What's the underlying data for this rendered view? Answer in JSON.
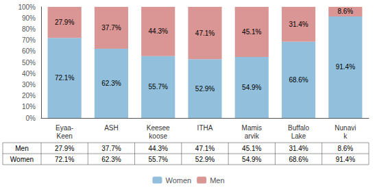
{
  "chart_data": {
    "type": "bar",
    "stacked": true,
    "categories": [
      "Eyaa-\nKeen",
      "ASH",
      "Keesee\nkoose",
      "ITHA",
      "Mamis\narvik",
      "Buffalo\nLake",
      "Nunavi\nk"
    ],
    "series": [
      {
        "name": "Women",
        "color": "#92C0DC",
        "values": [
          72.1,
          62.3,
          55.7,
          52.9,
          54.9,
          68.6,
          91.4
        ],
        "value_labels": [
          "72.1%",
          "62.3%",
          "55.7%",
          "52.9%",
          "54.9%",
          "68.6%",
          "91.4%"
        ]
      },
      {
        "name": "Men",
        "color": "#DA9694",
        "values": [
          27.9,
          37.7,
          44.3,
          47.1,
          45.1,
          31.4,
          8.6
        ],
        "value_labels": [
          "27.9%",
          "37.7%",
          "44.3%",
          "47.1%",
          "45.1%",
          "31.4%",
          "8.6%"
        ]
      }
    ],
    "ylim": [
      0,
      100
    ],
    "yticks": [
      {
        "value": 0,
        "label": "0%"
      },
      {
        "value": 10,
        "label": "10%"
      },
      {
        "value": 20,
        "label": "20%"
      },
      {
        "value": 30,
        "label": "30%"
      },
      {
        "value": 40,
        "label": "40%"
      },
      {
        "value": 50,
        "label": "50%"
      },
      {
        "value": 60,
        "label": "60%"
      },
      {
        "value": 70,
        "label": "70%"
      },
      {
        "value": 80,
        "label": "80%"
      },
      {
        "value": 90,
        "label": "90%"
      },
      {
        "value": 100,
        "label": "100%"
      }
    ],
    "grid": false,
    "legend": "bottom",
    "data_labels": true
  }
}
